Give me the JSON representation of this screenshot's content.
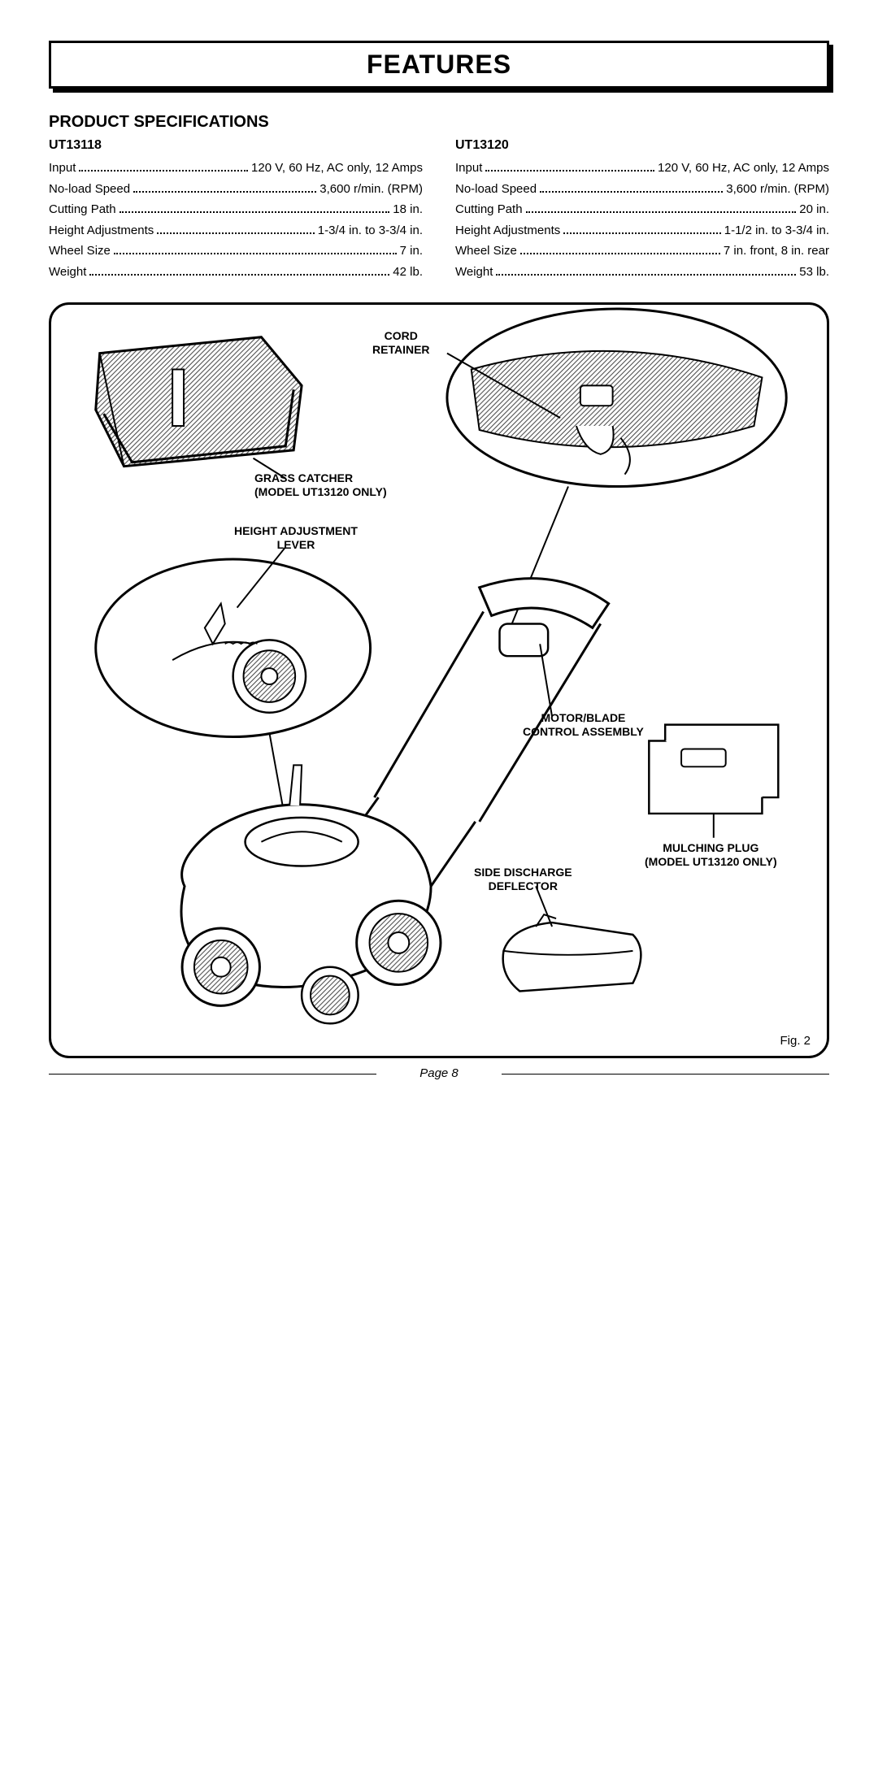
{
  "title": "FEATURES",
  "section_heading": "PRODUCT SPECIFICATIONS",
  "models": [
    {
      "name": "UT13118",
      "specs": [
        {
          "label": "Input",
          "value": "120 V, 60 Hz, AC only, 12 Amps"
        },
        {
          "label": "No-load Speed",
          "value": "3,600 r/min. (RPM)"
        },
        {
          "label": "Cutting Path",
          "value": "18 in."
        },
        {
          "label": "Height Adjustments",
          "value": "1-3/4 in. to 3-3/4 in."
        },
        {
          "label": "Wheel Size",
          "value": "7 in."
        },
        {
          "label": "Weight",
          "value": "42 lb."
        }
      ]
    },
    {
      "name": "UT13120",
      "specs": [
        {
          "label": "Input",
          "value": "120 V, 60 Hz, AC only, 12 Amps"
        },
        {
          "label": "No-load Speed",
          "value": "3,600 r/min. (RPM)"
        },
        {
          "label": "Cutting Path",
          "value": "20 in."
        },
        {
          "label": "Height Adjustments",
          "value": "1-1/2 in. to 3-3/4 in."
        },
        {
          "label": "Wheel Size",
          "value": "7 in. front, 8 in. rear"
        },
        {
          "label": "Weight",
          "value": "53 lb."
        }
      ]
    }
  ],
  "callouts": {
    "cord_retainer": "CORD\nRETAINER",
    "grass_catcher": "GRASS CATCHER\n(MODEL UT13120 ONLY)",
    "height_lever": "HEIGHT ADJUSTMENT\nLEVER",
    "motor_blade": "MOTOR/BLADE\nCONTROL ASSEMBLY",
    "side_discharge": "SIDE DISCHARGE\nDEFLECTOR",
    "mulching_plug": "MULCHING PLUG\n(MODEL UT13120 ONLY)"
  },
  "figure_label": "Fig. 2",
  "page_label": "Page 8",
  "colors": {
    "stroke": "#000000",
    "bg": "#ffffff",
    "hatch": "#555555"
  }
}
